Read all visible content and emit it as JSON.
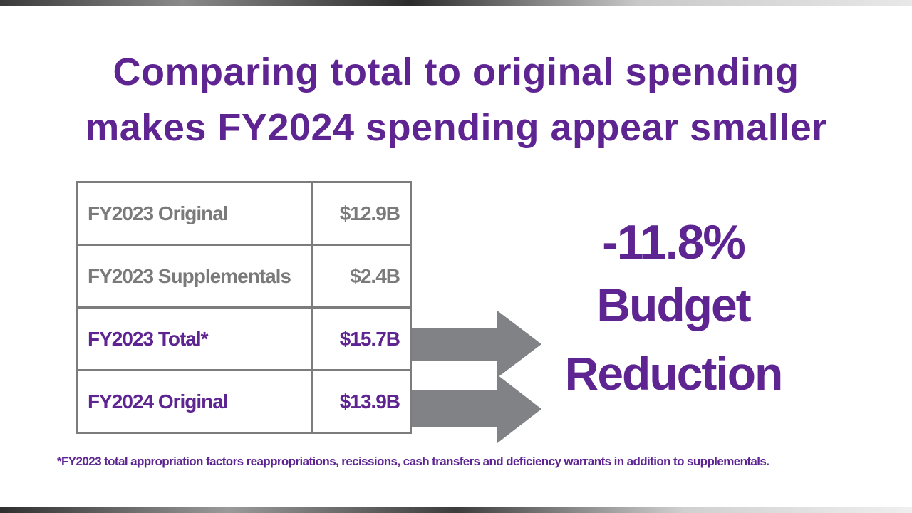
{
  "title": {
    "line1": "Comparing total to original spending",
    "line2": "makes FY2024 spending appear smaller"
  },
  "table": {
    "rows": [
      {
        "label": "FY2023 Original",
        "value": "$12.9B",
        "style": "gray"
      },
      {
        "label": "FY2023 Supplementals",
        "value": "$2.4B",
        "style": "gray"
      },
      {
        "label": "FY2023 Total*",
        "value": "$15.7B",
        "style": "purple"
      },
      {
        "label": "FY2024 Original",
        "value": "$13.9B",
        "style": "purple"
      }
    ]
  },
  "result": {
    "percent": "-11.8%",
    "line1": "Budget",
    "line2": "Reduction"
  },
  "footnote": "*FY2023 total appropriation factors reappropriations, recissions, cash transfers and deficiency warrants in addition to supplementals.",
  "colors": {
    "purple": "#5e2491",
    "gray": "#7a7a7a",
    "arrow": "#808285",
    "border": "#7c7c7c"
  }
}
